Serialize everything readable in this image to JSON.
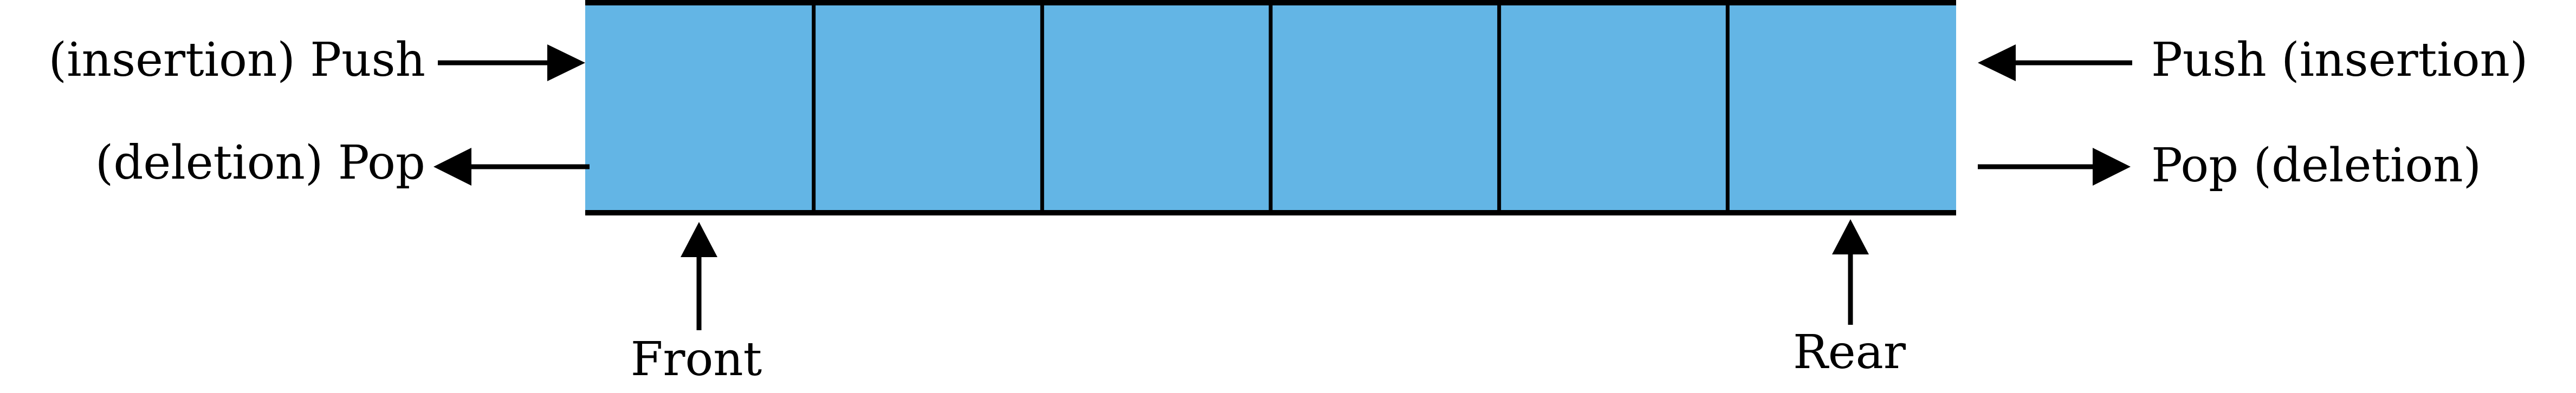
{
  "labels": {
    "left_push": "(insertion) Push",
    "left_pop": "(deletion) Pop",
    "right_push": "Push (insertion)",
    "right_pop": "Pop (deletion)",
    "front": "Front",
    "rear": "Rear"
  },
  "queue": {
    "cell_count": 6,
    "fill_color": "#63B5E5",
    "border_color": "#000000"
  }
}
